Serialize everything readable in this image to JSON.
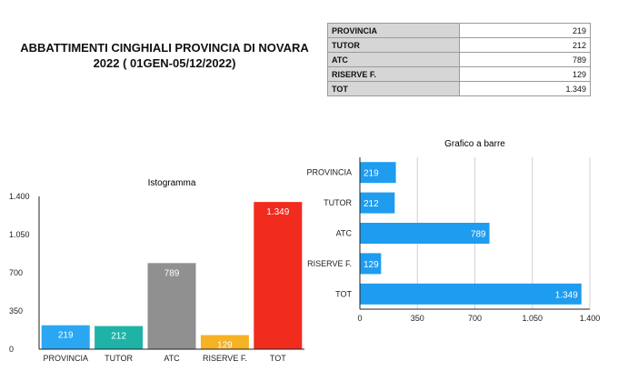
{
  "title": {
    "line1": "ABBATTIMENTI CINGHIALI PROVINCIA DI NOVARA",
    "line2": "2022 ( 01GEN-05/12/2022)"
  },
  "table": {
    "rows": [
      {
        "label": "PROVINCIA",
        "value": "219"
      },
      {
        "label": "TUTOR",
        "value": "212"
      },
      {
        "label": "ATC",
        "value": "789"
      },
      {
        "label": "RISERVE F.",
        "value": "129"
      },
      {
        "label": "TOT",
        "value": "1.349"
      }
    ]
  },
  "chart_data": [
    {
      "type": "bar",
      "title": "Istogramma",
      "categories": [
        "PROVINCIA",
        "TUTOR",
        "ATC",
        "RISERVE F.",
        "TOT"
      ],
      "values": [
        219,
        212,
        789,
        129,
        1349
      ],
      "data_labels": [
        "219",
        "212",
        "789",
        "129",
        "1.349"
      ],
      "colors": [
        "#2aa6f2",
        "#1fb3a8",
        "#909090",
        "#f5b224",
        "#f22b1f"
      ],
      "ylim": [
        0,
        1400
      ],
      "yticks": [
        0,
        350,
        700,
        1050,
        1400
      ],
      "ytick_labels": [
        "0",
        "350",
        "700",
        "1.050",
        "1.400"
      ],
      "grid": false
    },
    {
      "type": "bar",
      "orientation": "horizontal",
      "title": "Grafico a barre",
      "categories": [
        "PROVINCIA",
        "TUTOR",
        "ATC",
        "RISERVE F.",
        "TOT"
      ],
      "values": [
        219,
        212,
        789,
        129,
        1349
      ],
      "data_labels": [
        "219",
        "212",
        "789",
        "129",
        "1.349"
      ],
      "colors": [
        "#1e9cf0"
      ],
      "xlim": [
        0,
        1400
      ],
      "xticks": [
        0,
        350,
        700,
        1050,
        1400
      ],
      "xtick_labels": [
        "0",
        "350",
        "700",
        "1.050",
        "1.400"
      ],
      "grid": "vertical"
    }
  ]
}
